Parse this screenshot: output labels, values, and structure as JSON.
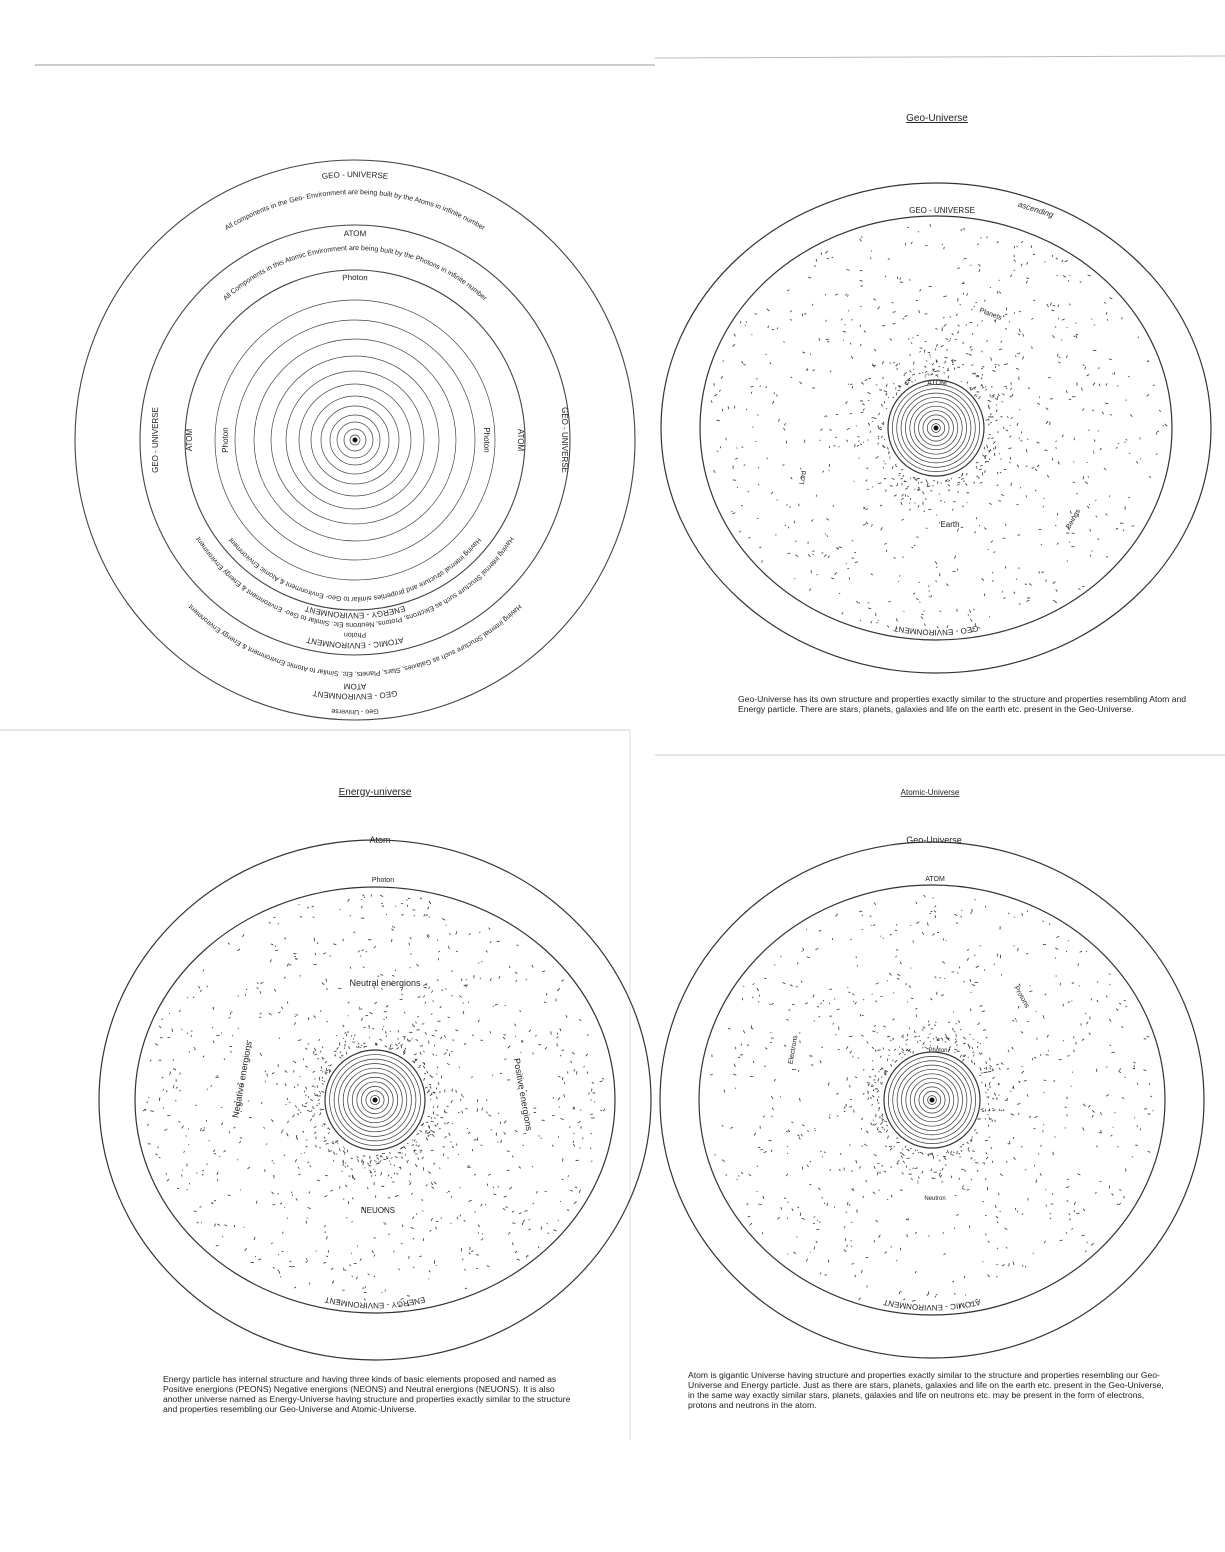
{
  "diagram_1": {
    "top": [
      "GEO - UNIVERSE",
      "All components in the Geo- Environment are being built by the Atoms in infinite number",
      "ATOM",
      "All Components in this Atomic Environment are being built by the Photons in infinite number",
      "Photon"
    ],
    "left": [
      "GEO - UNIVERSE",
      "ATOM",
      "Photon"
    ],
    "right": [
      "GEO - UNIVERSE",
      "ATOM",
      "Photon"
    ],
    "bottom": [
      "Geo - Universe",
      "GEO - ENVIRONMENT",
      "ATOM",
      "Having internal Structure such as Galaxies, Stars, Planets, Etc. Similar to Atomic Environment & Energy Environment",
      "ATOMIC - ENVIRONMENT",
      "Photon",
      "Having internal Structure such as Electrons, Protons, Neutrons Etc. Similar to Geo- Environment & Energy Environment",
      "ENERGY - ENVIRONMENT",
      "Having internal structure and properties similar to Geo- Environment & Atomic Environment"
    ]
  },
  "diagram_2": {
    "title": "Geo-Universe",
    "labels": [
      "GEO - UNIVERSE",
      "ascending",
      "Planets",
      "ATOM",
      "Lord",
      "Earth",
      "Beings"
    ],
    "environment": "GEO - ENVIRONMENT",
    "caption": "Geo-Universe has its own structure and properties exactly similar to the structure and properties resembling Atom and Energy particle. There are stars, planets, galaxies and life on the earth etc. present in the Geo-Universe."
  },
  "diagram_3": {
    "title": "Energy-universe",
    "labels": [
      "Atom",
      "Photon",
      "Neutral energions",
      "NEUONS"
    ],
    "side_labels": [
      "Negative energions",
      "Positive energions"
    ],
    "environment": "ENERGY - ENVIRONMENT",
    "caption": "Energy particle has internal structure and having three kinds of basic elements proposed and named as Positive energions (PEONS) Negative energions (NEONS) and Neutral energions (NEUONS). It is also another universe named as Energy-Universe having structure and properties exactly similar to the structure and properties resembling our Geo-Universe and Atomic-Universe."
  },
  "diagram_4": {
    "title": "Atomic-Universe",
    "labels": [
      "Geo-Universe",
      "ATOM",
      "Photon",
      "Neutron"
    ],
    "side_labels": [
      "Electrons",
      "Protons"
    ],
    "environment": "ATOMIC - ENVIRONMENT",
    "caption": "Atom is gigantic Universe having structure and properties exactly similar to the structure and properties resembling our Geo-Universe and Energy particle. Just as there are stars, planets, galaxies and life on the earth etc. present in the Geo-Universe, in the same way exactly similar stars, planets, galaxies and life on neutrons etc. may be present in the form of electrons, protons and neutrons in the atom."
  }
}
